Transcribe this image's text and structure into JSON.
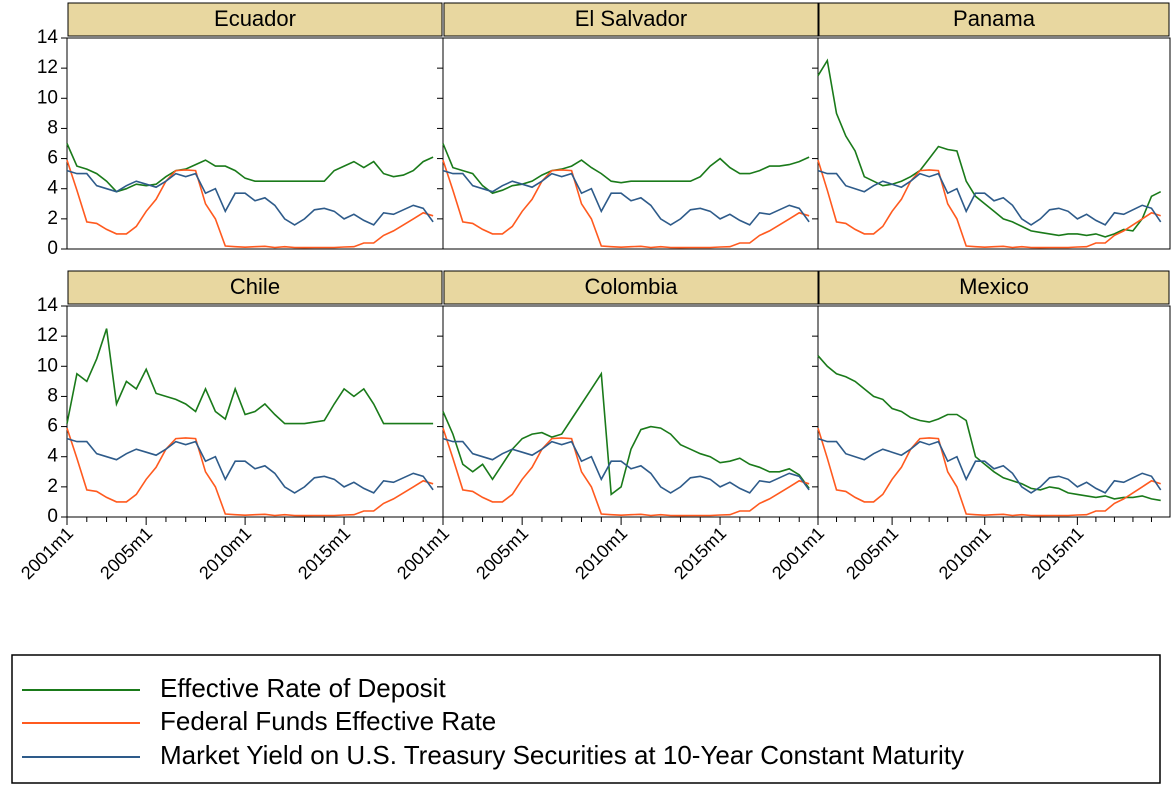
{
  "chart_data": {
    "type": "line",
    "x": [
      2001.0,
      2001.5,
      2002.0,
      2002.5,
      2003.0,
      2003.5,
      2004.0,
      2004.5,
      2005.0,
      2005.5,
      2006.0,
      2006.5,
      2007.0,
      2007.5,
      2008.0,
      2008.5,
      2009.0,
      2009.5,
      2010.0,
      2010.5,
      2011.0,
      2011.5,
      2012.0,
      2012.5,
      2013.0,
      2013.5,
      2014.0,
      2014.5,
      2015.0,
      2015.5,
      2016.0,
      2016.5,
      2017.0,
      2017.5,
      2018.0,
      2018.5,
      2019.0,
      2019.5
    ],
    "xlim": [
      2001,
      2020
    ],
    "xticks": [
      {
        "value": 2001,
        "label": "2001m1"
      },
      {
        "value": 2005,
        "label": "2005m1"
      },
      {
        "value": 2010,
        "label": "2010m1"
      },
      {
        "value": 2015,
        "label": "2015m1"
      }
    ],
    "xminorticks": [
      2002,
      2003,
      2004,
      2006,
      2007,
      2008,
      2009,
      2011,
      2012,
      2013,
      2014,
      2016,
      2017,
      2018,
      2019
    ],
    "ylim": [
      0,
      14
    ],
    "yticks": [
      0,
      2,
      4,
      6,
      8,
      10,
      12,
      14
    ],
    "series": [
      {
        "name": "Effective Rate of Deposit",
        "color": "#1a7a1a"
      },
      {
        "name": "Federal Funds Effective Rate",
        "color": "#ff5a1f",
        "values": [
          5.9,
          3.9,
          1.8,
          1.7,
          1.3,
          1.0,
          1.0,
          1.5,
          2.5,
          3.3,
          4.5,
          5.2,
          5.25,
          5.2,
          3.0,
          2.0,
          0.2,
          0.15,
          0.12,
          0.15,
          0.18,
          0.1,
          0.15,
          0.1,
          0.09,
          0.1,
          0.1,
          0.1,
          0.13,
          0.15,
          0.4,
          0.4,
          0.9,
          1.2,
          1.6,
          2.0,
          2.4,
          2.2
        ]
      },
      {
        "name": "Market Yield on U.S. Treasury Securities at 10-Year Constant Maturity",
        "color": "#2e5b8a",
        "values": [
          5.2,
          5.0,
          5.0,
          4.2,
          4.0,
          3.8,
          4.2,
          4.5,
          4.3,
          4.1,
          4.5,
          5.0,
          4.8,
          5.0,
          3.7,
          4.0,
          2.5,
          3.7,
          3.7,
          3.2,
          3.4,
          2.9,
          2.0,
          1.6,
          2.0,
          2.6,
          2.7,
          2.5,
          2.0,
          2.3,
          1.9,
          1.6,
          2.4,
          2.3,
          2.6,
          2.9,
          2.7,
          1.8
        ]
      }
    ],
    "panels": [
      {
        "title": "Ecuador",
        "values": [
          7.0,
          5.5,
          5.3,
          5.0,
          4.5,
          3.8,
          4.0,
          4.3,
          4.2,
          4.3,
          4.8,
          5.2,
          5.3,
          5.6,
          5.9,
          5.5,
          5.5,
          5.2,
          4.7,
          4.5,
          4.5,
          4.5,
          4.5,
          4.5,
          4.5,
          4.5,
          4.5,
          5.2,
          5.5,
          5.8,
          5.4,
          5.8,
          5.0,
          4.8,
          4.9,
          5.2,
          5.8,
          6.1
        ]
      },
      {
        "title": "El Salvador",
        "values": [
          7.0,
          5.4,
          5.2,
          5.0,
          4.2,
          3.7,
          3.9,
          4.2,
          4.3,
          4.5,
          4.9,
          5.2,
          5.3,
          5.5,
          5.9,
          5.4,
          5.0,
          4.5,
          4.4,
          4.5,
          4.5,
          4.5,
          4.5,
          4.5,
          4.5,
          4.5,
          4.8,
          5.5,
          6.0,
          5.4,
          5.0,
          5.0,
          5.2,
          5.5,
          5.5,
          5.6,
          5.8,
          6.1
        ]
      },
      {
        "title": "Panama",
        "values": [
          11.5,
          12.5,
          9.0,
          7.5,
          6.5,
          4.8,
          4.5,
          4.2,
          4.3,
          4.5,
          4.8,
          5.2,
          6.0,
          6.8,
          6.6,
          6.5,
          4.5,
          3.5,
          3.0,
          2.5,
          2.0,
          1.8,
          1.5,
          1.2,
          1.1,
          1.0,
          0.9,
          1.0,
          1.0,
          0.9,
          1.0,
          0.8,
          1.0,
          1.3,
          1.2,
          2.0,
          3.5,
          3.8
        ]
      },
      {
        "title": "Chile",
        "values": [
          6.2,
          9.5,
          9.0,
          10.5,
          12.5,
          7.5,
          9.0,
          8.5,
          9.8,
          8.2,
          8.0,
          7.8,
          7.5,
          7.0,
          8.5,
          7.0,
          6.5,
          8.5,
          6.8,
          7.0,
          7.5,
          6.8,
          6.2,
          6.2,
          6.2,
          6.3,
          6.4,
          7.5,
          8.5,
          8.0,
          8.5,
          7.5,
          6.2,
          6.2,
          6.2,
          6.2,
          6.2,
          6.2
        ]
      },
      {
        "title": "Colombia",
        "values": [
          7.0,
          5.5,
          3.5,
          3.0,
          3.5,
          2.5,
          3.5,
          4.5,
          5.2,
          5.5,
          5.6,
          5.3,
          5.5,
          6.5,
          7.5,
          8.5,
          9.5,
          1.5,
          2.0,
          4.5,
          5.8,
          6.0,
          5.9,
          5.5,
          4.8,
          4.5,
          4.2,
          4.0,
          3.6,
          3.7,
          3.9,
          3.5,
          3.3,
          3.0,
          3.0,
          3.2,
          2.8,
          1.9
        ]
      },
      {
        "title": "Mexico",
        "values": [
          10.7,
          10.0,
          9.5,
          9.3,
          9.0,
          8.5,
          8.0,
          7.8,
          7.2,
          7.0,
          6.6,
          6.4,
          6.3,
          6.5,
          6.8,
          6.8,
          6.4,
          4.0,
          3.5,
          3.0,
          2.6,
          2.4,
          2.2,
          1.9,
          1.8,
          2.0,
          1.9,
          1.6,
          1.5,
          1.4,
          1.3,
          1.4,
          1.2,
          1.3,
          1.3,
          1.4,
          1.2,
          1.1
        ]
      }
    ]
  }
}
